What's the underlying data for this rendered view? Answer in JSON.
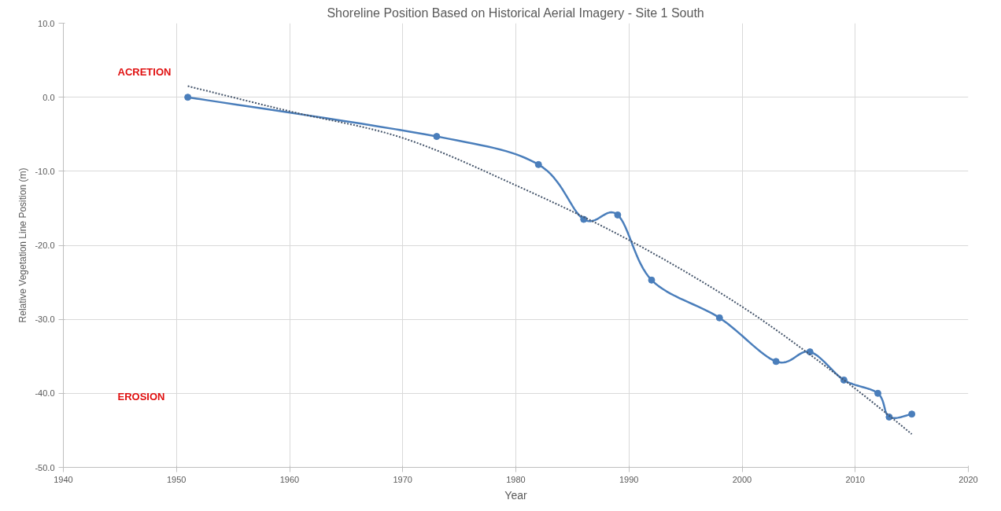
{
  "chart_data": {
    "type": "line",
    "title": "Shoreline Position Based on Historical Aerial Imagery - Site 1 South",
    "xlabel": "Year",
    "ylabel": "Relative Vegetation Line Position (m)",
    "series": [
      {
        "color": "#4a7ebb",
        "marker": "circle",
        "line_style": "solid",
        "x": [
          1951,
          1973,
          1982,
          1986,
          1989,
          1992,
          1998,
          2003,
          2006,
          2009,
          2012,
          2013,
          2015
        ],
        "values": [
          0.0,
          -5.3,
          -9.1,
          -16.5,
          -15.9,
          -24.7,
          -29.8,
          -35.7,
          -34.4,
          -38.2,
          -40.0,
          -43.2,
          -42.8
        ]
      },
      {
        "color": "#44546a",
        "marker": "none",
        "line_style": "dotted",
        "x": [
          1951,
          1960,
          1970,
          1980,
          1990,
          2000,
          2009,
          2015
        ],
        "values": [
          1.5,
          -1.9,
          -5.5,
          -11.9,
          -19.3,
          -28.3,
          -38.2,
          -45.5
        ]
      }
    ],
    "annotations": [
      "ACRETION",
      "EROSION"
    ],
    "xlim": [
      1940,
      2020
    ],
    "xticks": [
      1940,
      1950,
      1960,
      1970,
      1980,
      1990,
      2000,
      2010,
      2020
    ],
    "ylim": [
      -50,
      10
    ],
    "yticks": [
      {
        "value": -50,
        "label": "-50.0"
      },
      {
        "value": -40,
        "label": "-40.0"
      },
      {
        "value": -30,
        "label": "-30.0"
      },
      {
        "value": -20,
        "label": "-20.0"
      },
      {
        "value": -10,
        "label": "-10.0"
      },
      {
        "value": 0,
        "label": "0.0"
      },
      {
        "value": 10,
        "label": "10.0"
      }
    ],
    "grid": true
  }
}
